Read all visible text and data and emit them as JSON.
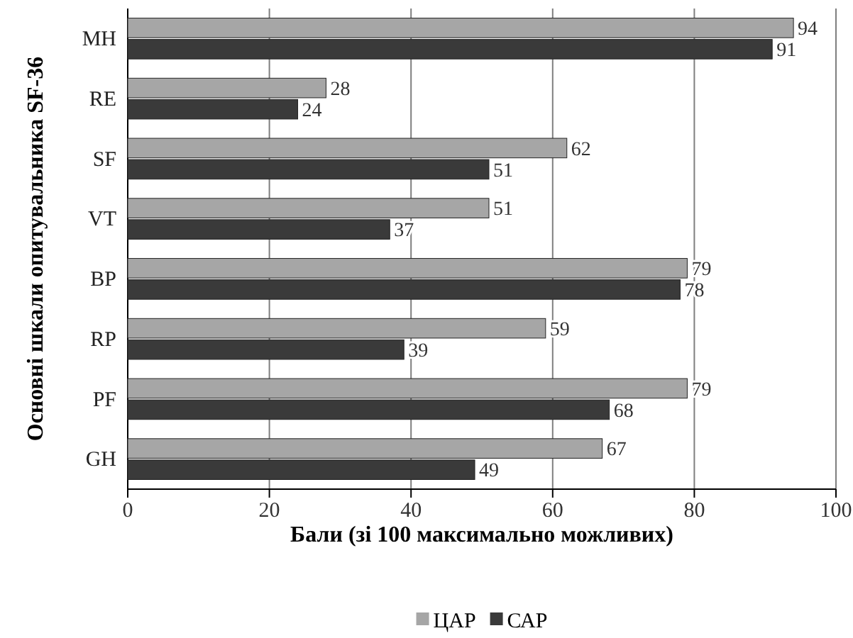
{
  "chart_data": {
    "type": "bar",
    "orientation": "horizontal",
    "categories": [
      "MH",
      "RE",
      "SF",
      "VT",
      "BP",
      "RP",
      "PF",
      "GH"
    ],
    "series": [
      {
        "name": "ЦАР",
        "color": "#a6a6a6",
        "values": [
          94,
          28,
          62,
          51,
          79,
          59,
          79,
          67
        ]
      },
      {
        "name": "САР",
        "color": "#3a3a3a",
        "values": [
          91,
          24,
          51,
          37,
          78,
          39,
          68,
          49
        ]
      }
    ],
    "xlim": [
      0,
      100
    ],
    "xticks": [
      0,
      20,
      40,
      60,
      80,
      100
    ],
    "xlabel": "Бали (зі 100 максимально можливих)",
    "ylabel": "Основні шкали опитувальника SF-36",
    "grid": "x",
    "data_labels": true,
    "legend": "bottom"
  }
}
